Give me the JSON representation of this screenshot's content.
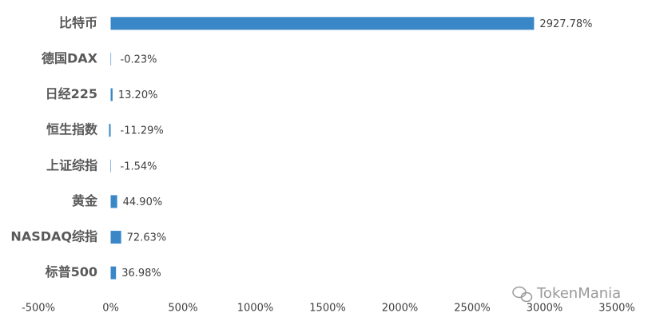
{
  "chart_data": {
    "type": "bar",
    "orientation": "horizontal",
    "categories": [
      "比特币",
      "德国DAX",
      "日经225",
      "恒生指数",
      "上证综指",
      "黄金",
      "NASDAQ综指",
      "标普500"
    ],
    "values": [
      2927.78,
      -0.23,
      13.2,
      -11.29,
      -1.54,
      44.9,
      72.63,
      36.98
    ],
    "value_labels": [
      "2927.78%",
      "-0.23%",
      "13.20%",
      "-11.29%",
      "-1.54%",
      "44.90%",
      "72.63%",
      "36.98%"
    ],
    "color": "#3a87c8",
    "xlim": [
      -500,
      3500
    ],
    "xticks": [
      {
        "value": -500,
        "label": "-500%"
      },
      {
        "value": 0,
        "label": "0%"
      },
      {
        "value": 500,
        "label": "500%"
      },
      {
        "value": 1000,
        "label": "1000%"
      },
      {
        "value": 1500,
        "label": "1500%"
      },
      {
        "value": 2000,
        "label": "2000%"
      },
      {
        "value": 2500,
        "label": "2500%"
      },
      {
        "value": 3000,
        "label": "3000%"
      },
      {
        "value": 3500,
        "label": "3500%"
      }
    ],
    "grid": false,
    "watermark": "TokenMania"
  }
}
